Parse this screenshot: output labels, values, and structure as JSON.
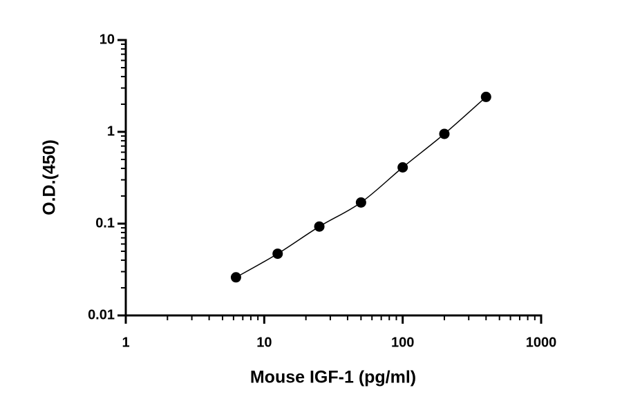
{
  "chart_data": {
    "type": "scatter",
    "x_label": "Mouse IGF-1 (pg/ml)",
    "y_label": "O.D.(450)",
    "x_scale": "log",
    "y_scale": "log",
    "xlim": [
      1,
      1000
    ],
    "ylim": [
      0.01,
      10
    ],
    "xticks": [
      1,
      10,
      100,
      1000
    ],
    "yticks": [
      0.01,
      0.1,
      1,
      10
    ],
    "fit_line": true,
    "series": [
      {
        "name": "Mouse IGF-1",
        "color": "#000000",
        "x": [
          6.25,
          12.5,
          25,
          50,
          100,
          200,
          400
        ],
        "values": [
          0.026,
          0.047,
          0.093,
          0.17,
          0.41,
          0.95,
          2.4
        ]
      }
    ]
  }
}
